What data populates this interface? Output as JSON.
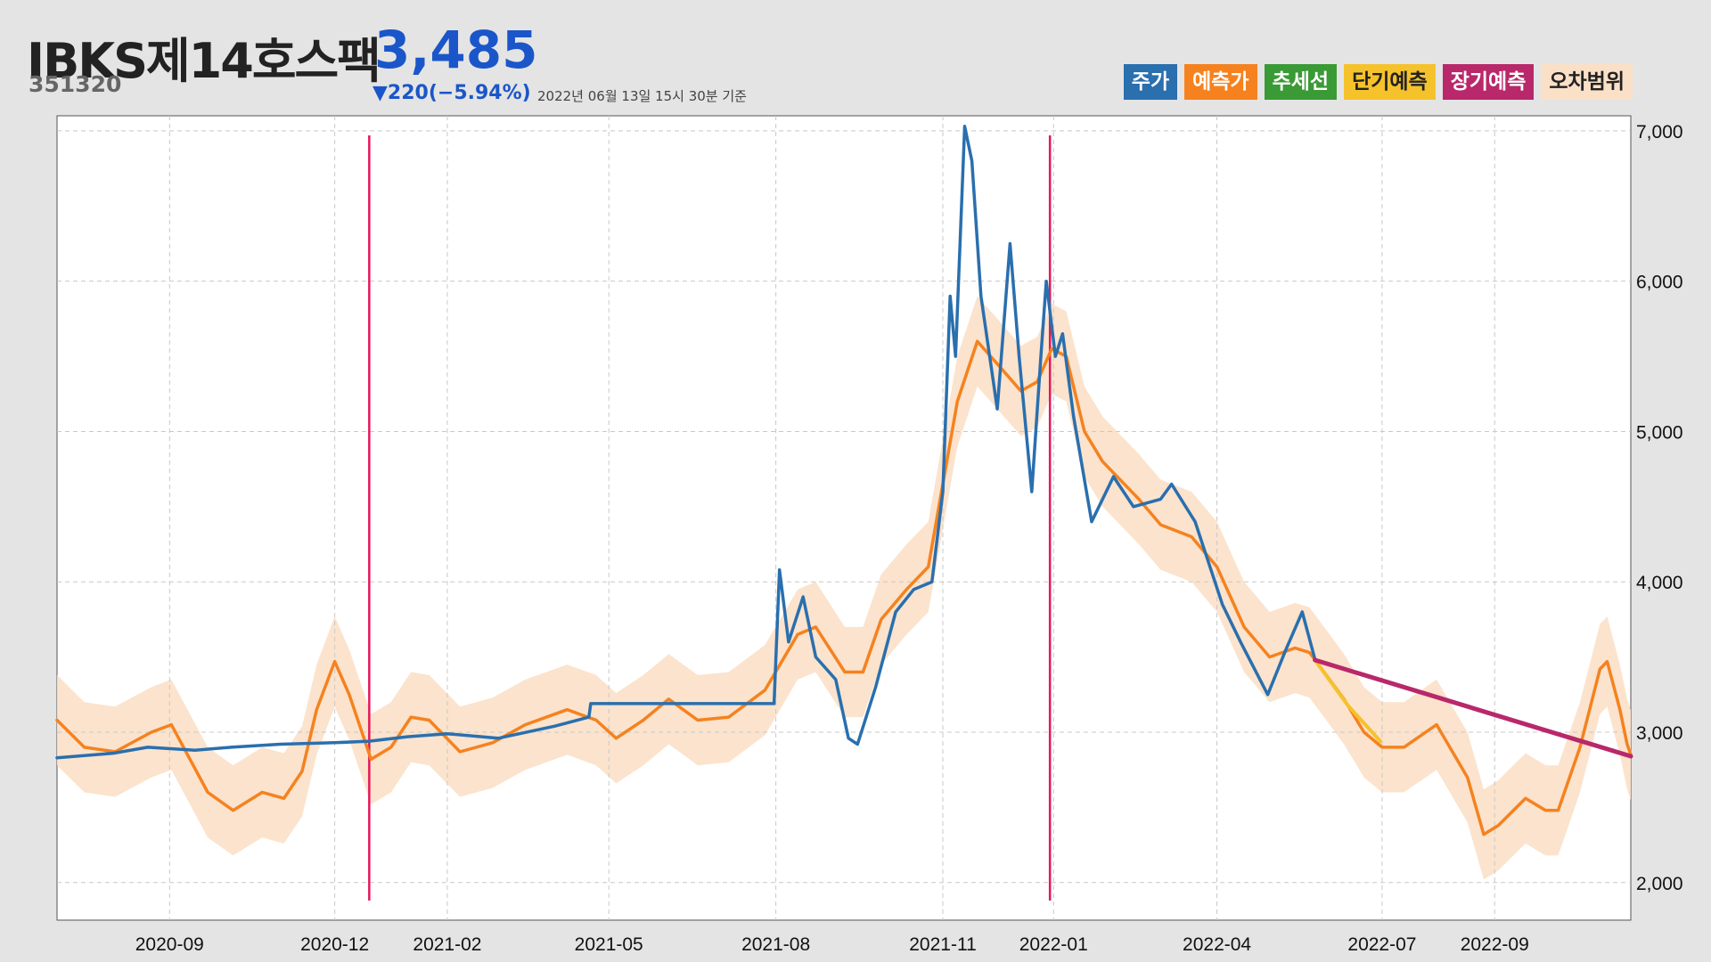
{
  "header": {
    "name": "IBKS제14호스팩",
    "price": "3,485",
    "code": "351320",
    "change": "▼220(−5.94%)",
    "timestamp": "2022년 06월 13일 15시 30분 기준"
  },
  "legend": [
    {
      "label": "주가",
      "color": "#2a6fae",
      "text_color": "#ffffff"
    },
    {
      "label": "예측가",
      "color": "#f5821f",
      "text_color": "#ffffff"
    },
    {
      "label": "추세선",
      "color": "#3a9a35",
      "text_color": "#ffffff"
    },
    {
      "label": "단기예측",
      "color": "#f6c22b",
      "text_color": "#222222"
    },
    {
      "label": "장기예측",
      "color": "#b8286a",
      "text_color": "#ffffff"
    },
    {
      "label": "오차범위",
      "color": "#fbe0c8",
      "text_color": "#222222"
    }
  ],
  "chart_data": {
    "type": "line",
    "x_type": "date",
    "x_range": [
      "2020-07-01",
      "2022-11-15"
    ],
    "ylim": [
      1750,
      7100
    ],
    "grid": true,
    "y_axis_side": "right",
    "x_ticks": [
      "2020-09",
      "2020-12",
      "2021-02",
      "2021-05",
      "2021-08",
      "2021-11",
      "2022-01",
      "2022-04",
      "2022-07",
      "2022-09"
    ],
    "y_ticks": [
      2000,
      3000,
      4000,
      5000,
      6000,
      7000
    ],
    "y_tick_labels": [
      "2,000",
      "3,000",
      "4,000",
      "5,000",
      "6,000",
      "7,000"
    ],
    "vertical_markers": {
      "dates": [
        "2020-12-20",
        "2021-12-30"
      ],
      "color": "#e8155a"
    },
    "series": [
      {
        "name": "주가",
        "color": "#2a6fae",
        "points": [
          [
            "2020-07-01",
            2830
          ],
          [
            "2020-08-01",
            2860
          ],
          [
            "2020-08-20",
            2900
          ],
          [
            "2020-09-15",
            2880
          ],
          [
            "2020-10-05",
            2900
          ],
          [
            "2020-11-01",
            2920
          ],
          [
            "2020-12-01",
            2930
          ],
          [
            "2020-12-20",
            2940
          ],
          [
            "2021-01-10",
            2970
          ],
          [
            "2021-02-01",
            2990
          ],
          [
            "2021-03-01",
            2960
          ],
          [
            "2021-04-01",
            3040
          ],
          [
            "2021-04-20",
            3100
          ],
          [
            "2021-04-21",
            3190
          ],
          [
            "2021-07-31",
            3190
          ],
          [
            "2021-08-03",
            4080
          ],
          [
            "2021-08-08",
            3600
          ],
          [
            "2021-08-16",
            3900
          ],
          [
            "2021-08-23",
            3500
          ],
          [
            "2021-09-03",
            3350
          ],
          [
            "2021-09-10",
            2960
          ],
          [
            "2021-09-15",
            2920
          ],
          [
            "2021-09-25",
            3300
          ],
          [
            "2021-10-06",
            3800
          ],
          [
            "2021-10-16",
            3950
          ],
          [
            "2021-10-26",
            4000
          ],
          [
            "2021-11-01",
            4600
          ],
          [
            "2021-11-05",
            5900
          ],
          [
            "2021-11-08",
            5500
          ],
          [
            "2021-11-13",
            7030
          ],
          [
            "2021-11-17",
            6800
          ],
          [
            "2021-11-22",
            5900
          ],
          [
            "2021-12-01",
            5150
          ],
          [
            "2021-12-08",
            6250
          ],
          [
            "2021-12-13",
            5500
          ],
          [
            "2021-12-20",
            4600
          ],
          [
            "2021-12-25",
            5500
          ],
          [
            "2021-12-28",
            6000
          ],
          [
            "2022-01-02",
            5500
          ],
          [
            "2022-01-06",
            5650
          ],
          [
            "2022-01-12",
            5100
          ],
          [
            "2022-01-22",
            4400
          ],
          [
            "2022-02-03",
            4700
          ],
          [
            "2022-02-14",
            4500
          ],
          [
            "2022-03-01",
            4550
          ],
          [
            "2022-03-07",
            4650
          ],
          [
            "2022-03-20",
            4400
          ],
          [
            "2022-04-04",
            3850
          ],
          [
            "2022-04-14",
            3600
          ],
          [
            "2022-04-29",
            3250
          ],
          [
            "2022-05-09",
            3550
          ],
          [
            "2022-05-18",
            3800
          ],
          [
            "2022-05-25",
            3485
          ]
        ]
      },
      {
        "name": "예측가",
        "color": "#f5821f",
        "points": [
          [
            "2020-07-01",
            3080
          ],
          [
            "2020-07-16",
            2900
          ],
          [
            "2020-08-02",
            2870
          ],
          [
            "2020-08-22",
            3000
          ],
          [
            "2020-09-02",
            3050
          ],
          [
            "2020-09-22",
            2600
          ],
          [
            "2020-10-06",
            2480
          ],
          [
            "2020-10-22",
            2600
          ],
          [
            "2020-11-03",
            2560
          ],
          [
            "2020-11-13",
            2740
          ],
          [
            "2020-11-21",
            3150
          ],
          [
            "2020-12-01",
            3470
          ],
          [
            "2020-12-09",
            3250
          ],
          [
            "2020-12-21",
            2820
          ],
          [
            "2021-01-01",
            2900
          ],
          [
            "2021-01-12",
            3100
          ],
          [
            "2021-01-22",
            3080
          ],
          [
            "2021-02-08",
            2870
          ],
          [
            "2021-02-26",
            2930
          ],
          [
            "2021-03-16",
            3050
          ],
          [
            "2021-04-08",
            3150
          ],
          [
            "2021-04-24",
            3080
          ],
          [
            "2021-05-05",
            2960
          ],
          [
            "2021-05-20",
            3080
          ],
          [
            "2021-06-03",
            3220
          ],
          [
            "2021-06-19",
            3080
          ],
          [
            "2021-07-06",
            3100
          ],
          [
            "2021-07-26",
            3280
          ],
          [
            "2021-08-13",
            3650
          ],
          [
            "2021-08-23",
            3700
          ],
          [
            "2021-09-08",
            3400
          ],
          [
            "2021-09-18",
            3400
          ],
          [
            "2021-09-28",
            3750
          ],
          [
            "2021-10-12",
            3950
          ],
          [
            "2021-10-24",
            4100
          ],
          [
            "2021-11-01",
            4650
          ],
          [
            "2021-11-09",
            5200
          ],
          [
            "2021-11-20",
            5600
          ],
          [
            "2021-12-01",
            5450
          ],
          [
            "2021-12-14",
            5270
          ],
          [
            "2021-12-23",
            5330
          ],
          [
            "2021-12-31",
            5550
          ],
          [
            "2022-01-08",
            5500
          ],
          [
            "2022-01-18",
            5000
          ],
          [
            "2022-01-28",
            4800
          ],
          [
            "2022-02-17",
            4550
          ],
          [
            "2022-03-01",
            4380
          ],
          [
            "2022-03-18",
            4300
          ],
          [
            "2022-04-01",
            4100
          ],
          [
            "2022-04-16",
            3700
          ],
          [
            "2022-04-30",
            3500
          ],
          [
            "2022-05-14",
            3560
          ],
          [
            "2022-05-22",
            3530
          ],
          [
            "2022-05-30",
            3400
          ],
          [
            "2022-06-10",
            3220
          ],
          [
            "2022-06-21",
            3000
          ],
          [
            "2022-07-01",
            2900
          ],
          [
            "2022-07-13",
            2900
          ],
          [
            "2022-07-31",
            3050
          ],
          [
            "2022-08-17",
            2700
          ],
          [
            "2022-08-26",
            2320
          ],
          [
            "2022-09-03",
            2380
          ],
          [
            "2022-09-18",
            2560
          ],
          [
            "2022-09-29",
            2480
          ],
          [
            "2022-10-06",
            2480
          ],
          [
            "2022-10-18",
            2900
          ],
          [
            "2022-10-29",
            3420
          ],
          [
            "2022-11-02",
            3470
          ],
          [
            "2022-11-09",
            3150
          ],
          [
            "2022-11-13",
            2920
          ],
          [
            "2022-11-15",
            2850
          ]
        ]
      },
      {
        "name": "단기예측",
        "color": "#f6c22b",
        "points": [
          [
            "2022-05-25",
            3480
          ],
          [
            "2022-06-12",
            3180
          ],
          [
            "2022-06-30",
            2940
          ]
        ]
      },
      {
        "name": "장기예측",
        "color": "#b8286a",
        "points": [
          [
            "2022-05-25",
            3480
          ],
          [
            "2022-11-15",
            2840
          ]
        ]
      },
      {
        "name": "오차범위",
        "color": "#fbe0c8",
        "type": "band",
        "half_width": 300
      }
    ]
  }
}
